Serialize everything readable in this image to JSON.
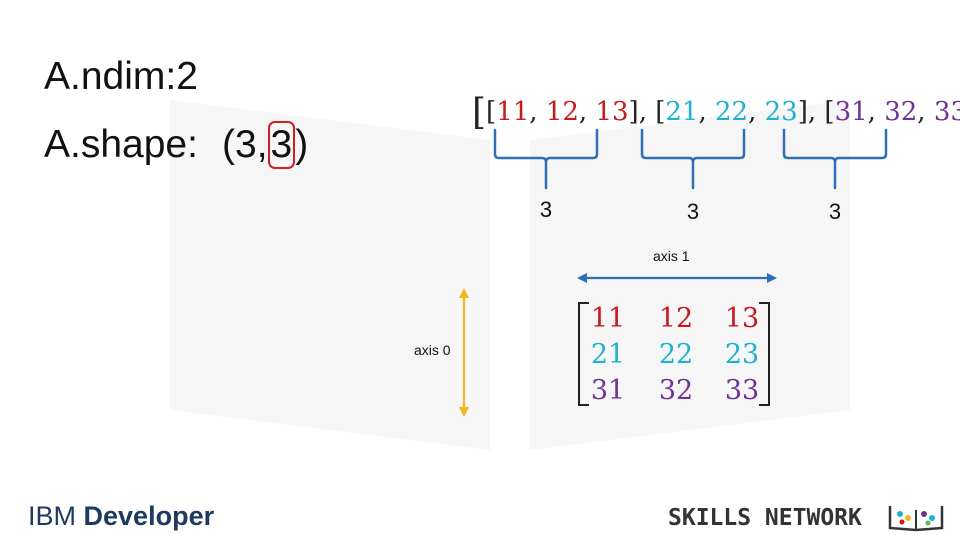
{
  "ndim_text": "A.ndim:2",
  "shape": {
    "label": "A.shape:",
    "open": "(",
    "first": "3",
    "comma": ",",
    "second": "3",
    "close": ")"
  },
  "nested_list": {
    "rows": [
      [
        "11",
        "12",
        "13"
      ],
      [
        "21",
        "22",
        "23"
      ],
      [
        "31",
        "32",
        "33"
      ]
    ],
    "counts": [
      "3",
      "3",
      "3"
    ]
  },
  "axis0_label": "axis 0",
  "axis1_label": "axis 1",
  "footer": {
    "ibm_light": "IBM",
    "ibm_bold": "Developer",
    "skills": "SKILLS NETWORK"
  },
  "colors": {
    "row1": "#c8191f",
    "row2": "#1fb2cf",
    "row3": "#6f3394",
    "brace": "#2f6fb8",
    "axis1_arrow": "#2f6fb8",
    "axis0_arrow": "#f0b81c",
    "highlight": "#d11f2a"
  }
}
